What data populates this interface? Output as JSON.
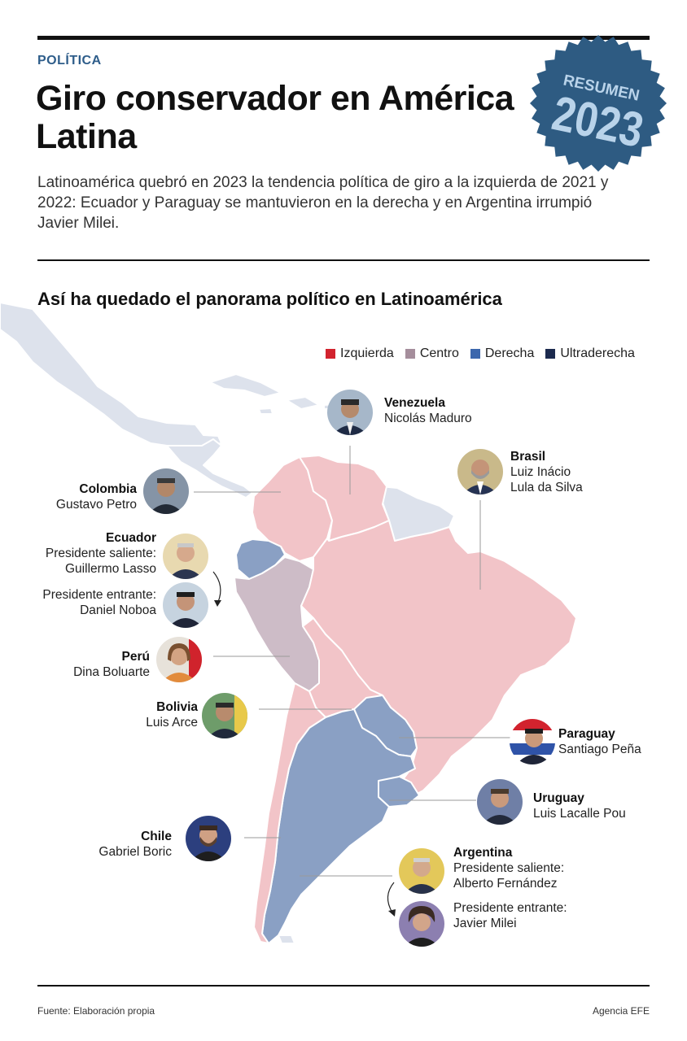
{
  "section": "POLÍTICA",
  "title": "Giro conservador en América Latina",
  "intro": "Latinoamérica quebró en 2023 la tendencia política de giro a la izquierda de 2021 y 2022: Ecuador y Paraguay se mantuvieron en la derecha y en Argentina irrumpió Javier Milei.",
  "badge": {
    "top": "RESUMEN",
    "year": "2023"
  },
  "subtitle": "Así ha quedado el panorama político en Latinoamérica",
  "colors": {
    "izquierda": "#f2c4c8",
    "centro": "#cdbcc7",
    "derecha": "#8aa0c4",
    "ultraderecha": "#1c2a4e",
    "otros": "#dde2ec",
    "badge": "#2e5b82"
  },
  "legend": [
    {
      "label": "Izquierda",
      "color": "#d2232e"
    },
    {
      "label": "Centro",
      "color": "#a58e9c"
    },
    {
      "label": "Derecha",
      "color": "#3c67ad"
    },
    {
      "label": "Ultraderecha",
      "color": "#1c2a4e"
    }
  ],
  "countries": {
    "venezuela": {
      "name": "Venezuela",
      "leader": "Nicolás Maduro"
    },
    "brasil": {
      "name": "Brasil",
      "leader1": "Luiz Inácio",
      "leader2": "Lula da Silva"
    },
    "colombia": {
      "name": "Colombia",
      "leader": "Gustavo Petro"
    },
    "ecuador": {
      "name": "Ecuador",
      "out_label": "Presidente saliente:",
      "out_name": "Guillermo Lasso",
      "in_label": "Presidente entrante:",
      "in_name": "Daniel Noboa"
    },
    "peru": {
      "name": "Perú",
      "leader": "Dina Boluarte"
    },
    "bolivia": {
      "name": "Bolivia",
      "leader": "Luis Arce"
    },
    "paraguay": {
      "name": "Paraguay",
      "leader": "Santiago Peña"
    },
    "uruguay": {
      "name": "Uruguay",
      "leader": "Luis Lacalle Pou"
    },
    "chile": {
      "name": "Chile",
      "leader": "Gabriel Boric"
    },
    "argentina": {
      "name": "Argentina",
      "out_label": "Presidente saliente:",
      "out_name": "Alberto Fernández",
      "in_label": "Presidente entrante:",
      "in_name": "Javier Milei"
    }
  },
  "footer": {
    "source": "Fuente: Elaboración propia",
    "agency": "Agencia EFE"
  }
}
